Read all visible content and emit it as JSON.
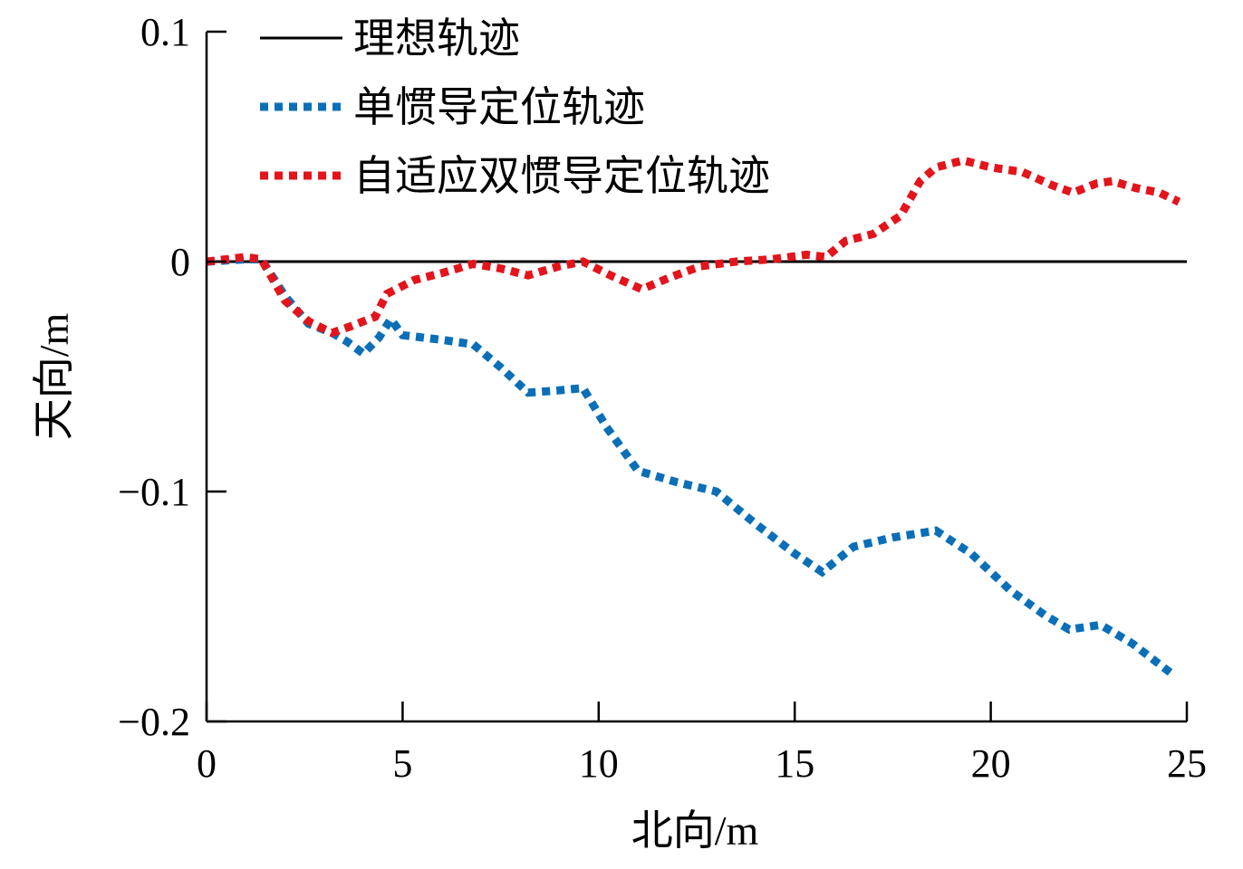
{
  "chart_data": {
    "type": "line",
    "title": "",
    "xlabel": "北向/m",
    "ylabel": "天向/m",
    "xlim": [
      0,
      25
    ],
    "ylim": [
      -0.2,
      0.1
    ],
    "x_ticks": [
      0,
      5,
      10,
      15,
      20,
      25
    ],
    "x_tick_labels": [
      "0",
      "5",
      "10",
      "15",
      "20",
      "25"
    ],
    "y_ticks": [
      0.1,
      0,
      -0.1,
      -0.2
    ],
    "y_tick_labels": [
      "0.1",
      "0",
      "−0.1",
      "−0.2"
    ],
    "grid": false,
    "legend_position": "top-left",
    "series": [
      {
        "name": "理想轨迹",
        "color": "#000000",
        "style": "solid",
        "x": [
          0,
          25
        ],
        "y": [
          0,
          0
        ]
      },
      {
        "name": "单惯导定位轨迹",
        "color": "#0b6fb8",
        "style": "dotted",
        "x": [
          0,
          1.0,
          1.4,
          2.0,
          2.6,
          3.2,
          3.6,
          4.0,
          4.4,
          4.7,
          5.0,
          6.0,
          6.8,
          7.5,
          8.2,
          9.0,
          9.6,
          10.2,
          11.0,
          12.0,
          13.0,
          14.0,
          15.0,
          15.7,
          16.5,
          17.5,
          18.6,
          19.5,
          20.5,
          21.4,
          22.0,
          22.8,
          23.6,
          24.6
        ],
        "y": [
          0,
          0.001,
          0.001,
          -0.015,
          -0.027,
          -0.031,
          -0.035,
          -0.04,
          -0.033,
          -0.025,
          -0.032,
          -0.034,
          -0.036,
          -0.046,
          -0.057,
          -0.056,
          -0.055,
          -0.072,
          -0.091,
          -0.096,
          -0.1,
          -0.114,
          -0.127,
          -0.135,
          -0.124,
          -0.12,
          -0.117,
          -0.127,
          -0.143,
          -0.154,
          -0.16,
          -0.158,
          -0.166,
          -0.179
        ]
      },
      {
        "name": "自适应双惯导定位轨迹",
        "color": "#e3141b",
        "style": "dotted",
        "x": [
          0,
          1.0,
          1.4,
          2.0,
          2.6,
          3.2,
          3.7,
          4.3,
          4.6,
          5.3,
          6.0,
          6.8,
          7.5,
          8.2,
          9.0,
          9.6,
          10.3,
          11.1,
          11.8,
          12.6,
          13.5,
          14.4,
          15.3,
          15.8,
          16.3,
          17.0,
          17.7,
          18.2,
          18.6,
          19.3,
          20.0,
          20.8,
          21.6,
          22.1,
          22.7,
          23.1,
          23.7,
          24.3,
          24.8
        ],
        "y": [
          0,
          0.002,
          0.001,
          -0.017,
          -0.026,
          -0.031,
          -0.028,
          -0.024,
          -0.014,
          -0.008,
          -0.005,
          -0.001,
          -0.003,
          -0.006,
          -0.002,
          0.0,
          -0.006,
          -0.012,
          -0.007,
          -0.002,
          0.0,
          0.001,
          0.003,
          0.002,
          0.009,
          0.012,
          0.02,
          0.035,
          0.041,
          0.044,
          0.041,
          0.039,
          0.033,
          0.03,
          0.034,
          0.035,
          0.032,
          0.03,
          0.026
        ]
      }
    ]
  }
}
